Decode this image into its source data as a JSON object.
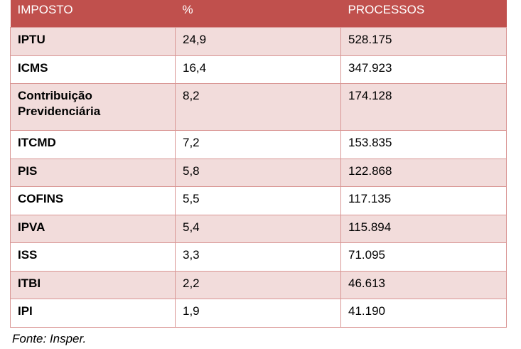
{
  "table": {
    "headers": [
      "IMPOSTO",
      "%",
      "PROCESSOS"
    ],
    "rows": [
      {
        "imposto": "IPTU",
        "percent": "24,9",
        "processos": "528.175"
      },
      {
        "imposto": "ICMS",
        "percent": "16,4",
        "processos": "347.923"
      },
      {
        "imposto": "Contribuição Previdenciária",
        "percent": "8,2",
        "processos": "174.128"
      },
      {
        "imposto": "ITCMD",
        "percent": "7,2",
        "processos": "153.835"
      },
      {
        "imposto": "PIS",
        "percent": "5,8",
        "processos": "122.868"
      },
      {
        "imposto": "COFINS",
        "percent": "5,5",
        "processos": "117.135"
      },
      {
        "imposto": "IPVA",
        "percent": "5,4",
        "processos": "115.894"
      },
      {
        "imposto": "ISS",
        "percent": "3,3",
        "processos": "71.095"
      },
      {
        "imposto": "ITBI",
        "percent": "2,2",
        "processos": "46.613"
      },
      {
        "imposto": "IPI",
        "percent": "1,9",
        "processos": "41.190"
      }
    ]
  },
  "source": "Fonte: Insper.",
  "colors": {
    "header_bg": "#c0504d",
    "header_text": "#ffffff",
    "band_fill": "#f2dcdb",
    "border": "#d99694"
  }
}
